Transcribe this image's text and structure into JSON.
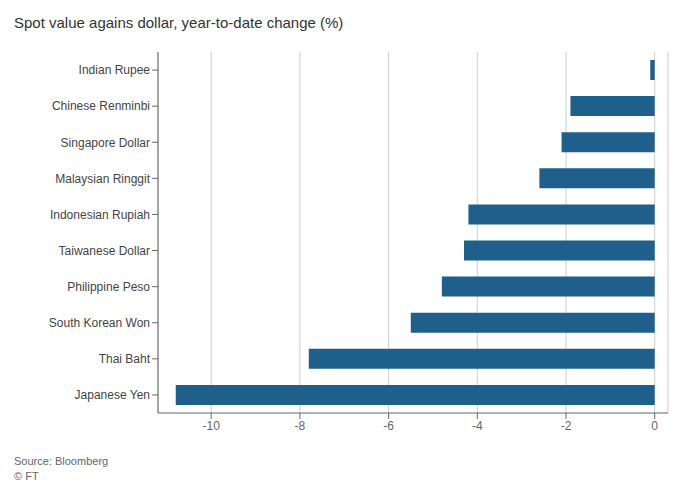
{
  "chart_data": {
    "type": "bar",
    "title": "Spot value agains dollar, year-to-date change (%)",
    "annotations": [
      "Source: Bloomberg\n© FT"
    ],
    "categories": [
      "Japanese Yen",
      "Thai Baht",
      "South Korean Won",
      "Philippine Peso",
      "Taiwanese Dollar",
      "Indonesian Rupiah",
      "Malaysian Ringgit",
      "Singapore Dollar",
      "Chinese Renminbi",
      "Indian Rupee"
    ],
    "values": [
      -10.8,
      -7.8,
      -5.5,
      -4.8,
      -4.3,
      -4.2,
      -2.6,
      -2.1,
      -1.9,
      -0.1
    ],
    "color": "#1f5f8b",
    "orientation": "horizontal",
    "xlim": [
      -11.2,
      0.3
    ],
    "xticks": [
      -10,
      -8,
      -6,
      -4,
      -2,
      0
    ],
    "grid": true
  }
}
